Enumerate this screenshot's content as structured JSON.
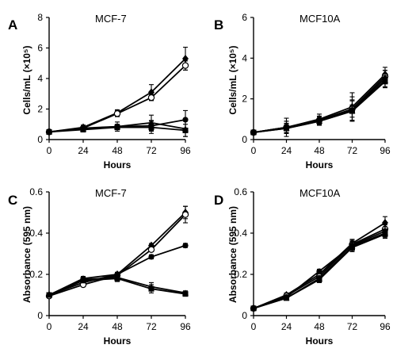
{
  "chart_data": [
    {
      "type": "line",
      "panel_letter": "A",
      "title": "MCF-7",
      "xlabel": "Hours",
      "ylabel": "Cells/mL (×10⁵)",
      "x": [
        0,
        24,
        48,
        72,
        96
      ],
      "xticks": [
        "0",
        "24",
        "48",
        "72",
        "96"
      ],
      "ylim": [
        0,
        8
      ],
      "yticks": [
        "0",
        "2",
        "4",
        "6",
        "8"
      ],
      "grid": false,
      "series": [
        {
          "marker": "diamond",
          "values": [
            0.5,
            0.8,
            1.75,
            3.1,
            5.3
          ],
          "errors": [
            0.05,
            0.15,
            0.2,
            0.5,
            0.75
          ]
        },
        {
          "marker": "open-circle",
          "values": [
            0.5,
            0.75,
            1.7,
            2.75,
            4.85
          ],
          "errors": [
            0.05,
            0.1,
            0.2,
            0.2,
            0.3
          ]
        },
        {
          "marker": "filled-circle",
          "values": [
            0.5,
            0.75,
            0.85,
            0.9,
            1.3
          ],
          "errors": [
            0.05,
            0.1,
            0.15,
            0.35,
            0.6
          ]
        },
        {
          "marker": "triangle",
          "values": [
            0.5,
            0.7,
            0.85,
            1.1,
            0.7
          ],
          "errors": [
            0.05,
            0.15,
            0.3,
            0.5,
            0.5
          ]
        },
        {
          "marker": "square",
          "values": [
            0.5,
            0.65,
            0.8,
            0.8,
            0.6
          ],
          "errors": [
            0.05,
            0.1,
            0.15,
            0.4,
            0.4
          ]
        }
      ]
    },
    {
      "type": "line",
      "panel_letter": "B",
      "title": "MCF10A",
      "xlabel": "Hours",
      "ylabel": "Cells/mL (×10⁵)",
      "x": [
        0,
        24,
        48,
        72,
        96
      ],
      "xticks": [
        "0",
        "24",
        "48",
        "72",
        "96"
      ],
      "ylim": [
        0,
        6
      ],
      "yticks": [
        "0",
        "2",
        "4",
        "6"
      ],
      "grid": false,
      "series": [
        {
          "marker": "diamond",
          "values": [
            0.35,
            0.6,
            1.0,
            1.6,
            3.2
          ],
          "errors": [
            0.05,
            0.3,
            0.25,
            0.7,
            0.35
          ]
        },
        {
          "marker": "open-circle",
          "values": [
            0.35,
            0.6,
            0.95,
            1.5,
            3.1
          ],
          "errors": [
            0.05,
            0.45,
            0.2,
            0.6,
            0.3
          ]
        },
        {
          "marker": "filled-circle",
          "values": [
            0.35,
            0.6,
            0.95,
            1.45,
            3.0
          ],
          "errors": [
            0.05,
            0.3,
            0.2,
            0.5,
            0.4
          ]
        },
        {
          "marker": "triangle",
          "values": [
            0.35,
            0.55,
            0.9,
            1.4,
            2.9
          ],
          "errors": [
            0.05,
            0.25,
            0.2,
            0.5,
            0.35
          ]
        },
        {
          "marker": "square",
          "values": [
            0.35,
            0.55,
            0.9,
            1.4,
            2.85
          ],
          "errors": [
            0.05,
            0.2,
            0.15,
            0.3,
            0.3
          ]
        }
      ]
    },
    {
      "type": "line",
      "panel_letter": "C",
      "title": "MCF-7",
      "xlabel": "Hours",
      "ylabel": "Absorbance (595 nm)",
      "x": [
        0,
        24,
        48,
        72,
        96
      ],
      "xticks": [
        "0",
        "24",
        "48",
        "72",
        "96"
      ],
      "ylim": [
        0,
        0.6
      ],
      "yticks": [
        "0",
        "0.2",
        "0.4",
        "0.6"
      ],
      "grid": false,
      "series": [
        {
          "marker": "diamond",
          "values": [
            0.1,
            0.16,
            0.2,
            0.34,
            0.5
          ],
          "errors": [
            0.005,
            0.01,
            0.01,
            0.01,
            0.03
          ]
        },
        {
          "marker": "open-circle",
          "values": [
            0.095,
            0.15,
            0.195,
            0.32,
            0.49
          ],
          "errors": [
            0.005,
            0.01,
            0.01,
            0.01,
            0.04
          ]
        },
        {
          "marker": "filled-circle",
          "values": [
            0.1,
            0.18,
            0.2,
            0.285,
            0.34
          ],
          "errors": [
            0.005,
            0.01,
            0.01,
            0.01,
            0.01
          ]
        },
        {
          "marker": "triangle",
          "values": [
            0.1,
            0.175,
            0.185,
            0.14,
            0.11
          ],
          "errors": [
            0.005,
            0.01,
            0.015,
            0.02,
            0.01
          ]
        },
        {
          "marker": "square",
          "values": [
            0.1,
            0.17,
            0.18,
            0.13,
            0.105
          ],
          "errors": [
            0.005,
            0.01,
            0.015,
            0.02,
            0.01
          ]
        }
      ]
    },
    {
      "type": "line",
      "panel_letter": "D",
      "title": "MCF10A",
      "xlabel": "Hours",
      "ylabel": "Absorbance (595 nm)",
      "x": [
        0,
        24,
        48,
        72,
        96
      ],
      "xticks": [
        "0",
        "24",
        "48",
        "72",
        "96"
      ],
      "ylim": [
        0,
        0.6
      ],
      "yticks": [
        "0",
        "0.2",
        "0.4",
        "0.6"
      ],
      "grid": false,
      "series": [
        {
          "marker": "diamond",
          "values": [
            0.035,
            0.1,
            0.2,
            0.35,
            0.45
          ],
          "errors": [
            0.005,
            0.01,
            0.01,
            0.02,
            0.03
          ]
        },
        {
          "marker": "open-circle",
          "values": [
            0.035,
            0.095,
            0.19,
            0.345,
            0.42
          ],
          "errors": [
            0.005,
            0.01,
            0.01,
            0.02,
            0.02
          ]
        },
        {
          "marker": "filled-circle",
          "values": [
            0.035,
            0.09,
            0.215,
            0.34,
            0.41
          ],
          "errors": [
            0.005,
            0.01,
            0.01,
            0.02,
            0.02
          ]
        },
        {
          "marker": "triangle",
          "values": [
            0.035,
            0.085,
            0.18,
            0.335,
            0.4
          ],
          "errors": [
            0.005,
            0.01,
            0.015,
            0.02,
            0.02
          ]
        },
        {
          "marker": "square",
          "values": [
            0.035,
            0.085,
            0.175,
            0.33,
            0.395
          ],
          "errors": [
            0.005,
            0.01,
            0.015,
            0.02,
            0.02
          ]
        }
      ]
    }
  ]
}
